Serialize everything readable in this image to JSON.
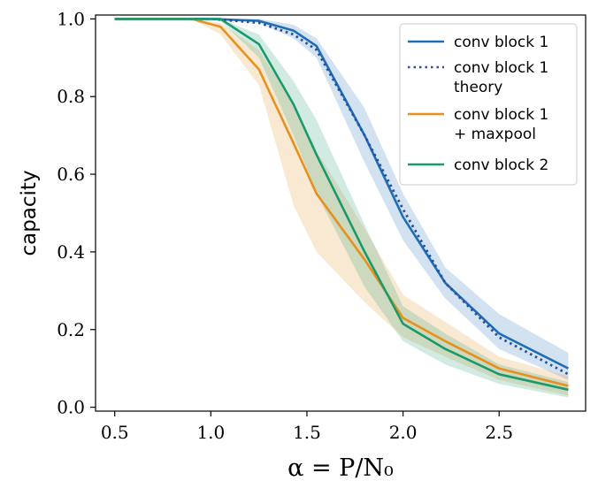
{
  "chart_data": {
    "type": "line",
    "xlabel": "α = P/N₀",
    "ylabel": "capacity",
    "xlim": [
      0.4,
      2.95
    ],
    "ylim": [
      -0.01,
      1.01
    ],
    "xticks": [
      0.5,
      1.0,
      1.5,
      2.0,
      2.5
    ],
    "xtick_labels": [
      "0.5",
      "1.0",
      "1.5",
      "2.0",
      "2.5"
    ],
    "yticks": [
      0.0,
      0.2,
      0.4,
      0.6,
      0.8,
      1.0
    ],
    "ytick_labels": [
      "0.0",
      "0.2",
      "0.4",
      "0.6",
      "0.8",
      "1.0"
    ],
    "grid": false,
    "legend_position": "top-right",
    "series": [
      {
        "name": "conv block 1",
        "color": "#1f6eb5",
        "style": "solid",
        "x": [
          0.5,
          0.75,
          1.0,
          1.25,
          1.43,
          1.55,
          1.8,
          2.0,
          2.22,
          2.5,
          2.86
        ],
        "y": [
          1.0,
          1.0,
          1.0,
          0.995,
          0.97,
          0.93,
          0.7,
          0.49,
          0.32,
          0.19,
          0.1
        ],
        "band_low": [
          1.0,
          1.0,
          1.0,
          0.99,
          0.95,
          0.9,
          0.63,
          0.43,
          0.28,
          0.15,
          0.07
        ],
        "band_high": [
          1.0,
          1.0,
          1.0,
          1.0,
          0.985,
          0.95,
          0.77,
          0.55,
          0.36,
          0.24,
          0.14
        ]
      },
      {
        "name": "conv block 1\ntheory",
        "color": "#2a4d9e",
        "style": "dotted",
        "x": [
          0.5,
          0.75,
          1.0,
          1.25,
          1.43,
          1.55,
          1.8,
          2.0,
          2.22,
          2.5,
          2.86
        ],
        "y": [
          1.0,
          1.0,
          1.0,
          0.99,
          0.96,
          0.92,
          0.7,
          0.51,
          0.32,
          0.18,
          0.085
        ]
      },
      {
        "name": "conv block 1\n+ maxpool",
        "color": "#e8901e",
        "style": "solid",
        "x": [
          0.5,
          0.9,
          1.05,
          1.25,
          1.43,
          1.55,
          1.8,
          2.0,
          2.22,
          2.5,
          2.86
        ],
        "y": [
          1.0,
          1.0,
          0.98,
          0.87,
          0.68,
          0.55,
          0.38,
          0.23,
          0.17,
          0.1,
          0.055
        ],
        "band_low": [
          1.0,
          1.0,
          0.96,
          0.83,
          0.52,
          0.4,
          0.27,
          0.18,
          0.13,
          0.07,
          0.03
        ],
        "band_high": [
          1.0,
          1.0,
          0.99,
          0.92,
          0.78,
          0.66,
          0.46,
          0.29,
          0.22,
          0.13,
          0.08
        ]
      },
      {
        "name": "conv block 2",
        "color": "#1a9a6c",
        "style": "solid",
        "x": [
          0.5,
          0.9,
          1.05,
          1.25,
          1.43,
          1.55,
          1.8,
          2.0,
          2.22,
          2.5,
          2.86
        ],
        "y": [
          1.0,
          1.0,
          1.0,
          0.935,
          0.78,
          0.65,
          0.4,
          0.215,
          0.15,
          0.085,
          0.045
        ],
        "band_low": [
          1.0,
          1.0,
          0.995,
          0.9,
          0.7,
          0.55,
          0.31,
          0.17,
          0.11,
          0.06,
          0.025
        ],
        "band_high": [
          1.0,
          1.0,
          1.0,
          0.96,
          0.84,
          0.74,
          0.47,
          0.26,
          0.19,
          0.11,
          0.065
        ]
      }
    ]
  }
}
